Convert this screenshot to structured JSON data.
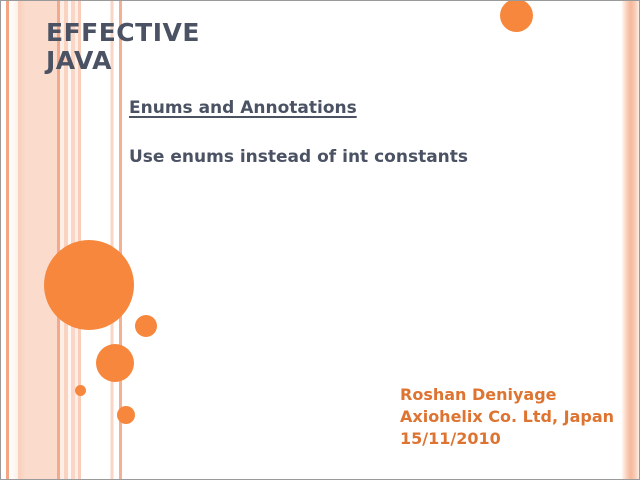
{
  "slide": {
    "title": "EFFECTIVE\nJAVA",
    "heading": "Enums and Annotations",
    "subtitle": "Use enums instead of int constants",
    "credits": [
      "Roshan Deniyage",
      "Axiohelix Co. Ltd, Japan",
      "15/11/2010"
    ]
  },
  "colors": {
    "title_text": "#4a5263",
    "heading_text": "#4a5263",
    "subtitle_text": "#4a5263",
    "credits_text": "#de7431",
    "accent_orange_circles": "#f7873d",
    "stripe_peach": "#fbdbcc",
    "stripe_salmon": "#f5a98c",
    "frame_border": "#9a9a9a",
    "background": "#ffffff"
  }
}
